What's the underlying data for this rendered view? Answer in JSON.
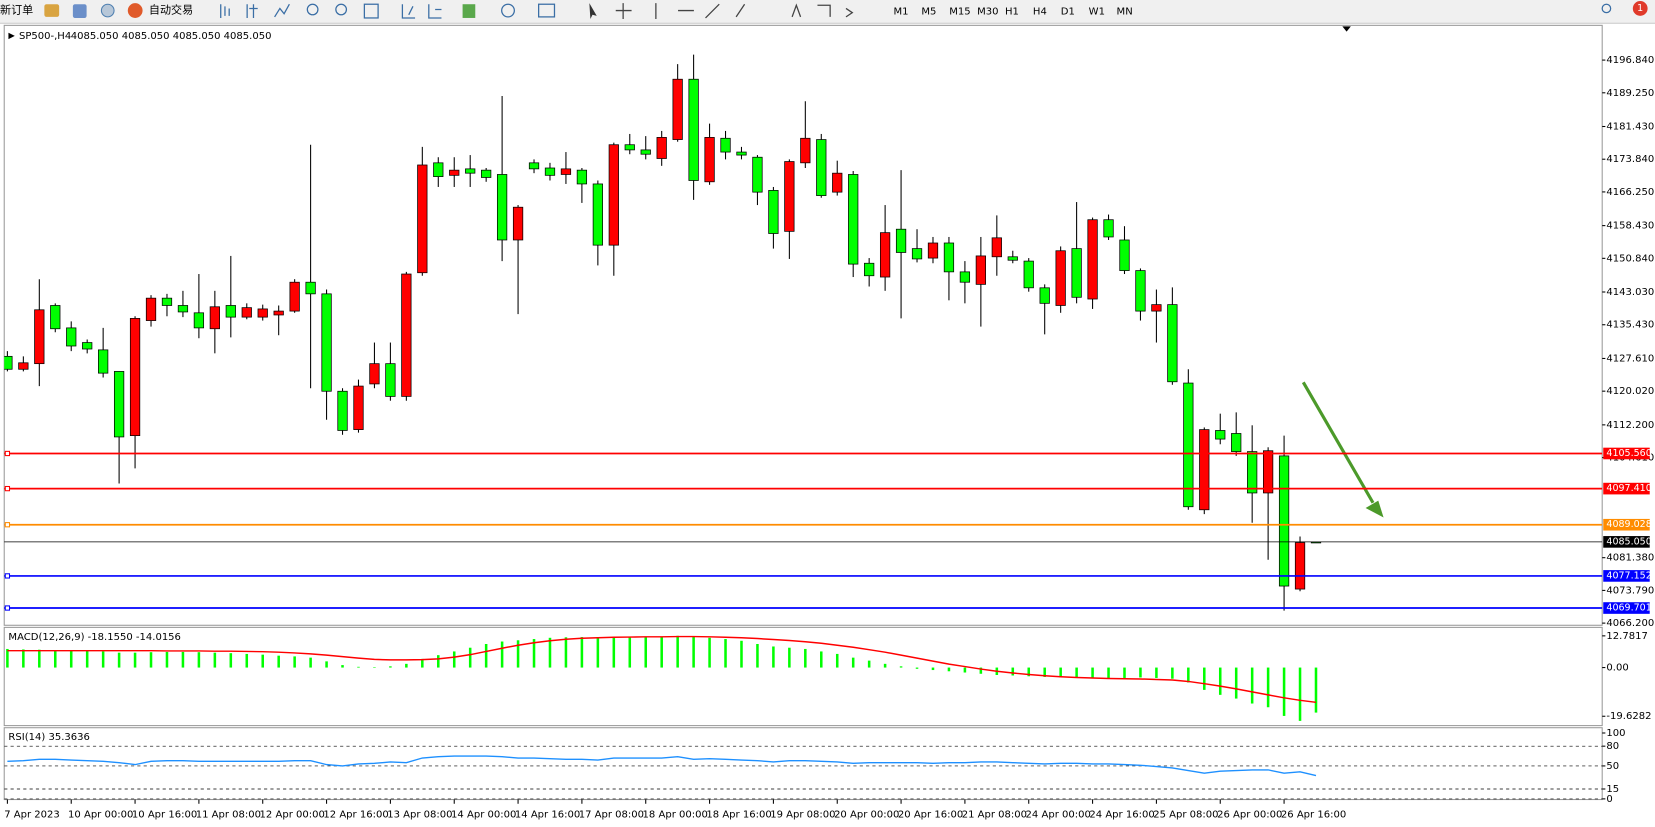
{
  "toolbar": {
    "new_order": "新订单",
    "auto_trade": "自动交易",
    "timeframes": [
      "M1",
      "M5",
      "M15",
      "M30",
      "H1",
      "H4",
      "D1",
      "W1",
      "MN"
    ],
    "badge": "1"
  },
  "chart_data": [
    {
      "type": "candlestick",
      "title": "SP500-,H4",
      "subtitle": "4085.050 4085.050 4085.050 4085.050",
      "up_color": "#ff0000",
      "down_color": "#00ff00",
      "categories": [
        "7 Apr 2023",
        null,
        null,
        null,
        "10 Apr 00:00",
        null,
        null,
        null,
        "10 Apr 16:00",
        null,
        null,
        null,
        "11 Apr 08:00",
        null,
        null,
        null,
        "12 Apr 00:00",
        null,
        null,
        null,
        "12 Apr 16:00",
        null,
        null,
        null,
        "13 Apr 08:00",
        null,
        null,
        null,
        "14 Apr 00:00",
        null,
        null,
        null,
        "14 Apr 16:00",
        null,
        null,
        null,
        "17 Apr 08:00",
        null,
        null,
        null,
        "18 Apr 00:00",
        null,
        null,
        null,
        "18 Apr 16:00",
        null,
        null,
        null,
        "19 Apr 08:00",
        null,
        null,
        null,
        "20 Apr 00:00",
        null,
        null,
        null,
        "20 Apr 16:00",
        null,
        null,
        null,
        "21 Apr 08:00",
        null,
        null,
        null,
        "24 Apr 00:00",
        null,
        null,
        null,
        "24 Apr 16:00",
        null,
        null,
        null,
        "25 Apr 08:00",
        null,
        null,
        null,
        "26 Apr 00:00",
        null,
        null,
        null,
        "26 Apr 16:00",
        null,
        null
      ],
      "open": [
        4128.1,
        4125.1,
        4126.4,
        4139.9,
        4134.7,
        4131.3,
        4129.6,
        4124.6,
        4109.7,
        4136.4,
        4141.6,
        4139.9,
        4138.2,
        4134.5,
        4139.9,
        4137.2,
        4137.2,
        4137.7,
        4138.6,
        4145.3,
        4142.6,
        4120.0,
        4111.1,
        4121.7,
        4126.4,
        4118.8,
        4147.5,
        4173.0,
        4170.1,
        4171.6,
        4171.3,
        4170.3,
        4155.1,
        4173.0,
        4171.8,
        4170.3,
        4171.3,
        4168.1,
        4153.9,
        4177.2,
        4176.0,
        4174.0,
        4178.4,
        4192.4,
        4168.6,
        4178.7,
        4175.5,
        4174.3,
        4166.6,
        4157.1,
        4173.0,
        4178.4,
        4166.2,
        4170.3,
        4149.7,
        4146.5,
        4157.6,
        4153.1,
        4150.9,
        4154.4,
        4147.7,
        4144.8,
        4151.2,
        4151.2,
        4150.2,
        4144.0,
        4139.9,
        4153.1,
        4141.4,
        4159.8,
        4155.1,
        4148.0,
        4138.6,
        4140.1,
        4121.9,
        4092.5,
        4110.9,
        4110.2,
        4106.0,
        4096.4,
        4105.0,
        4074.1,
        4085.05
      ],
      "high": [
        4129.3,
        4128.1,
        4146.0,
        4140.4,
        4136.2,
        4132.0,
        4134.7,
        4124.6,
        4137.4,
        4142.3,
        4142.6,
        4143.3,
        4147.2,
        4143.3,
        4151.4,
        4140.4,
        4140.1,
        4139.9,
        4146.0,
        4177.2,
        4143.6,
        4120.7,
        4122.7,
        4131.3,
        4131.3,
        4147.7,
        4176.7,
        4174.3,
        4174.3,
        4174.8,
        4171.8,
        4188.5,
        4163.2,
        4173.8,
        4173.0,
        4175.5,
        4171.8,
        4168.9,
        4177.7,
        4179.7,
        4179.2,
        4180.4,
        4195.9,
        4198.1,
        4182.1,
        4180.4,
        4176.7,
        4174.8,
        4167.4,
        4173.8,
        4187.3,
        4179.7,
        4173.5,
        4171.1,
        4150.9,
        4163.2,
        4171.3,
        4157.6,
        4155.8,
        4155.8,
        4150.2,
        4155.8,
        4160.8,
        4152.6,
        4150.9,
        4144.8,
        4153.6,
        4163.9,
        4160.3,
        4161.0,
        4158.3,
        4148.5,
        4143.6,
        4144.1,
        4125.1,
        4111.6,
        4114.8,
        4115.1,
        4112.1,
        4107.0,
        4109.7,
        4086.3,
        4085.05
      ],
      "low": [
        4124.6,
        4124.6,
        4121.2,
        4133.7,
        4129.3,
        4128.8,
        4123.2,
        4098.6,
        4102.1,
        4135.0,
        4137.4,
        4137.2,
        4132.3,
        4128.8,
        4132.5,
        4136.7,
        4136.4,
        4133.0,
        4138.2,
        4120.7,
        4113.4,
        4109.9,
        4110.4,
        4120.7,
        4117.8,
        4117.8,
        4146.8,
        4167.4,
        4167.4,
        4167.4,
        4168.6,
        4150.2,
        4137.9,
        4170.6,
        4168.9,
        4168.1,
        4163.7,
        4149.2,
        4146.8,
        4175.0,
        4173.8,
        4172.3,
        4177.9,
        4164.4,
        4167.9,
        4173.8,
        4173.8,
        4163.2,
        4153.1,
        4150.7,
        4171.8,
        4164.9,
        4165.4,
        4146.5,
        4144.3,
        4143.3,
        4136.9,
        4149.9,
        4149.7,
        4141.1,
        4140.4,
        4135.0,
        4146.8,
        4149.7,
        4143.1,
        4133.2,
        4138.2,
        4140.4,
        4139.1,
        4155.1,
        4147.2,
        4136.4,
        4131.3,
        4121.5,
        4092.5,
        4091.5,
        4107.7,
        4105.0,
        4089.5,
        4080.9,
        4069.1,
        4073.6,
        4085.05
      ],
      "close": [
        4125.1,
        4126.6,
        4138.9,
        4134.5,
        4130.5,
        4129.8,
        4124.2,
        4109.4,
        4136.9,
        4141.6,
        4139.9,
        4138.4,
        4134.7,
        4139.6,
        4137.2,
        4139.4,
        4139.1,
        4138.6,
        4145.3,
        4142.6,
        4120.0,
        4110.9,
        4121.2,
        4126.4,
        4118.8,
        4147.2,
        4172.5,
        4169.8,
        4171.3,
        4170.6,
        4169.6,
        4155.1,
        4162.7,
        4171.6,
        4170.1,
        4171.6,
        4168.1,
        4153.9,
        4177.2,
        4176.0,
        4175.0,
        4178.9,
        4192.4,
        4168.9,
        4178.9,
        4175.5,
        4174.8,
        4166.2,
        4156.6,
        4173.3,
        4178.7,
        4165.4,
        4170.6,
        4149.5,
        4146.8,
        4156.8,
        4152.2,
        4150.7,
        4154.4,
        4147.7,
        4145.3,
        4151.4,
        4155.6,
        4150.4,
        4144.0,
        4140.4,
        4152.6,
        4141.8,
        4159.8,
        4155.8,
        4148.0,
        4138.6,
        4140.1,
        4122.2,
        4093.2,
        4111.1,
        4108.9,
        4106.0,
        4096.4,
        4106.2,
        4074.8,
        4084.9,
        4085.05
      ],
      "ylim": [
        4065.7,
        4204.9
      ],
      "yticks": [
        {
          "value": 4196.84,
          "label": "4196.840"
        },
        {
          "value": 4189.25,
          "label": "4189.250"
        },
        {
          "value": 4181.43,
          "label": "4181.430"
        },
        {
          "value": 4173.84,
          "label": "4173.840"
        },
        {
          "value": 4166.25,
          "label": "4166.250"
        },
        {
          "value": 4158.43,
          "label": "4158.430"
        },
        {
          "value": 4150.84,
          "label": "4150.840"
        },
        {
          "value": 4143.03,
          "label": "4143.030"
        },
        {
          "value": 4135.43,
          "label": "4135.430"
        },
        {
          "value": 4127.61,
          "label": "4127.610"
        },
        {
          "value": 4120.02,
          "label": "4120.020"
        },
        {
          "value": 4112.2,
          "label": "4112.200"
        },
        {
          "value": 4104.61,
          "label": "4104.610"
        },
        {
          "value": 4081.38,
          "label": "4081.380"
        },
        {
          "value": 4073.79,
          "label": "4073.790"
        },
        {
          "value": 4066.2,
          "label": "4066.200"
        }
      ],
      "levels": [
        {
          "value": 4105.56,
          "label": "4105.560",
          "color": "#ff0000"
        },
        {
          "value": 4097.41,
          "label": "4097.410",
          "color": "#ff0000"
        },
        {
          "value": 4089.028,
          "label": "4089.028",
          "color": "#ff8c00"
        },
        {
          "value": 4077.152,
          "label": "4077.152",
          "color": "#0000ff"
        },
        {
          "value": 4069.701,
          "label": "4069.701",
          "color": "#0000ff"
        }
      ],
      "bid": {
        "value": 4085.05,
        "label": "4085.050",
        "color": "#000000"
      }
    },
    {
      "type": "macd",
      "title": "MACD(12,26,9) -18.1550 -14.0156",
      "histogram": {
        "color": "#00ff00",
        "values": [
          7.5,
          7.3,
          7.2,
          7.0,
          7.0,
          6.8,
          6.5,
          6.0,
          6.0,
          6.2,
          6.3,
          6.3,
          6.2,
          6.0,
          5.8,
          5.5,
          5.2,
          4.8,
          4.5,
          4.0,
          2.5,
          1.0,
          0.3,
          0.2,
          0.5,
          1.5,
          3.5,
          5.0,
          6.5,
          8.0,
          9.5,
          10.5,
          11.0,
          11.5,
          12.0,
          12.2,
          12.3,
          12.3,
          12.4,
          12.4,
          12.5,
          12.5,
          12.8,
          12.5,
          12.0,
          11.5,
          10.8,
          9.5,
          8.5,
          8.0,
          7.5,
          6.5,
          5.5,
          4.0,
          2.8,
          1.5,
          0.5,
          -0.5,
          -1.0,
          -1.5,
          -2.0,
          -2.5,
          -3.0,
          -3.2,
          -3.5,
          -3.8,
          -4.0,
          -4.2,
          -4.3,
          -4.5,
          -4.2,
          -4.0,
          -4.2,
          -4.5,
          -6.0,
          -9.0,
          -11.0,
          -12.5,
          -14.5,
          -16.0,
          -19.5,
          -21.5,
          -18.155
        ]
      },
      "signal": {
        "color": "#ff0000",
        "values": [
          6.8,
          6.8,
          6.8,
          6.8,
          6.8,
          6.8,
          6.8,
          6.8,
          6.8,
          6.8,
          6.7,
          6.7,
          6.7,
          6.6,
          6.6,
          6.5,
          6.4,
          6.2,
          5.9,
          5.5,
          5.0,
          4.4,
          3.8,
          3.3,
          3.1,
          3.1,
          3.2,
          3.5,
          4.2,
          5.2,
          6.5,
          7.8,
          9.0,
          10.0,
          10.8,
          11.4,
          11.8,
          12.0,
          12.2,
          12.3,
          12.4,
          12.4,
          12.5,
          12.5,
          12.4,
          12.2,
          12.0,
          11.7,
          11.3,
          10.9,
          10.4,
          9.8,
          9.0,
          8.2,
          7.2,
          6.2,
          5.0,
          3.8,
          2.6,
          1.4,
          0.4,
          -0.6,
          -1.5,
          -2.2,
          -2.8,
          -3.3,
          -3.7,
          -4.0,
          -4.2,
          -4.4,
          -4.5,
          -4.6,
          -4.8,
          -5.0,
          -5.6,
          -6.5,
          -7.5,
          -8.6,
          -9.8,
          -11.0,
          -12.2,
          -13.2,
          -14.0156
        ]
      },
      "ylim": [
        -23.4,
        16.2
      ],
      "yticks": [
        12.7817,
        {
          "value": 0,
          "label": "0.00"
        },
        -19.6282
      ]
    },
    {
      "type": "line",
      "title": "RSI(14) 35.3636",
      "color": "#1e90ff",
      "values": [
        57,
        58,
        60,
        60,
        59,
        58,
        57,
        55,
        52,
        57,
        58,
        58,
        57,
        57,
        57,
        57,
        57,
        57,
        58,
        58,
        52,
        50,
        53,
        54,
        56,
        55,
        62,
        64,
        65,
        65,
        65,
        64,
        62,
        62,
        61,
        60,
        60,
        59,
        62,
        62,
        62,
        62,
        64,
        60,
        61,
        60,
        59,
        58,
        56,
        58,
        58,
        57,
        56,
        54,
        55,
        55,
        55,
        55,
        54,
        55,
        55,
        56,
        56,
        55,
        54,
        53,
        54,
        54,
        53,
        53,
        52,
        51,
        49,
        47,
        43,
        39,
        42,
        43,
        44,
        44,
        39,
        41,
        35.3636
      ],
      "ylim": [
        -1,
        108
      ],
      "yticks": [
        100,
        80,
        50,
        15,
        0
      ]
    }
  ]
}
